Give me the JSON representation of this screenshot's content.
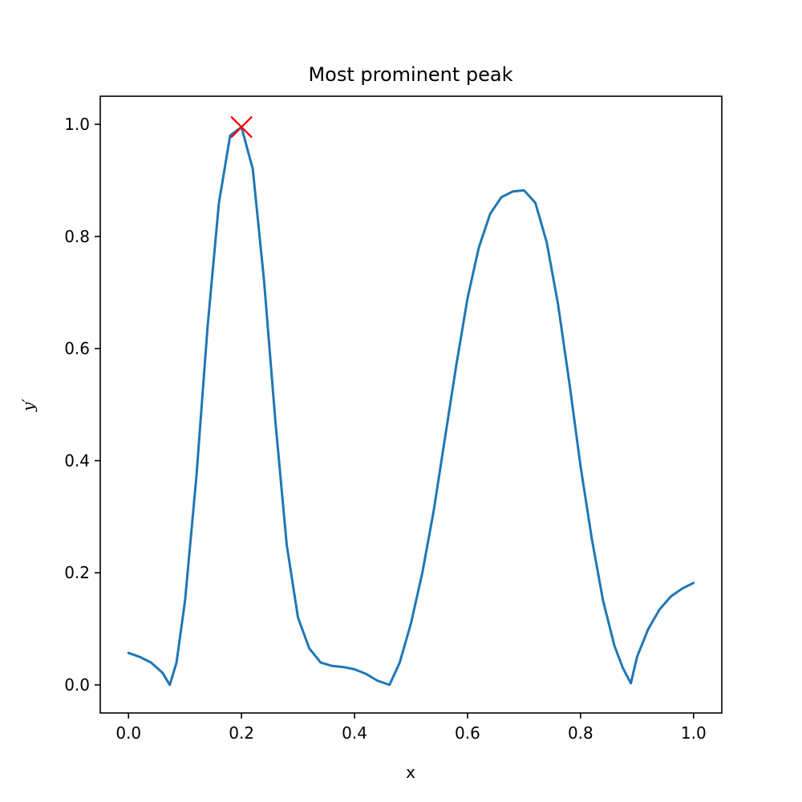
{
  "chart_data": {
    "type": "line",
    "title": "Most prominent peak",
    "xlabel": "x",
    "ylabel": "y′",
    "xlim": [
      -0.05,
      1.05
    ],
    "ylim": [
      -0.05,
      1.05
    ],
    "x_ticks": [
      0.0,
      0.2,
      0.4,
      0.6,
      0.8,
      1.0
    ],
    "x_tick_labels": [
      "0.0",
      "0.2",
      "0.4",
      "0.6",
      "0.8",
      "1.0"
    ],
    "y_ticks": [
      0.0,
      0.2,
      0.4,
      0.6,
      0.8,
      1.0
    ],
    "y_tick_labels": [
      "0.0",
      "0.2",
      "0.4",
      "0.6",
      "0.8",
      "1.0"
    ],
    "grid": false,
    "line_color": "#1f77b4",
    "marker_color": "#ff0000",
    "series": [
      {
        "x": [
          0.0,
          0.02,
          0.04,
          0.06,
          0.073,
          0.085,
          0.1,
          0.12,
          0.14,
          0.16,
          0.18,
          0.2,
          0.22,
          0.24,
          0.26,
          0.28,
          0.3,
          0.32,
          0.34,
          0.36,
          0.38,
          0.4,
          0.42,
          0.44,
          0.462,
          0.48,
          0.5,
          0.52,
          0.54,
          0.56,
          0.58,
          0.6,
          0.62,
          0.64,
          0.66,
          0.68,
          0.7,
          0.72,
          0.74,
          0.76,
          0.78,
          0.8,
          0.82,
          0.84,
          0.86,
          0.875,
          0.889,
          0.9,
          0.92,
          0.94,
          0.96,
          0.98,
          1.0
        ],
        "y": [
          0.057,
          0.05,
          0.04,
          0.022,
          0.0,
          0.04,
          0.15,
          0.37,
          0.64,
          0.86,
          0.98,
          0.995,
          0.92,
          0.72,
          0.47,
          0.25,
          0.12,
          0.065,
          0.04,
          0.034,
          0.032,
          0.028,
          0.02,
          0.008,
          0.0,
          0.04,
          0.11,
          0.2,
          0.31,
          0.44,
          0.57,
          0.69,
          0.78,
          0.84,
          0.87,
          0.88,
          0.882,
          0.86,
          0.79,
          0.68,
          0.54,
          0.39,
          0.26,
          0.15,
          0.07,
          0.03,
          0.003,
          0.05,
          0.1,
          0.135,
          0.158,
          0.172,
          0.182
        ]
      }
    ],
    "markers": [
      {
        "x": 0.2,
        "y": 0.995,
        "symbol": "x"
      }
    ]
  }
}
